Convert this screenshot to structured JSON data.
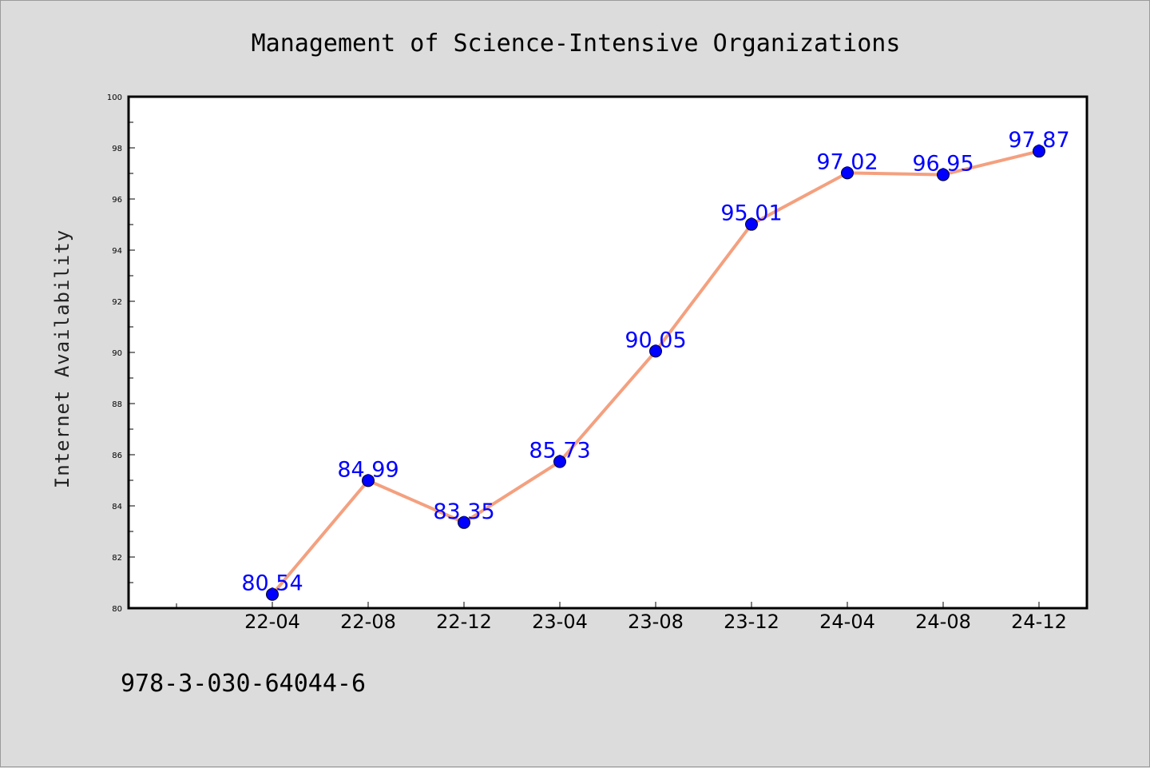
{
  "chart_data": {
    "type": "line",
    "title": "Management of Science-Intensive Organizations",
    "xlabel": "",
    "ylabel": "Internet Availability",
    "categories": [
      "22-04",
      "22-08",
      "22-12",
      "23-04",
      "23-08",
      "23-12",
      "24-04",
      "24-08",
      "24-12"
    ],
    "values": [
      80.54,
      84.99,
      83.35,
      85.73,
      90.05,
      95.01,
      97.02,
      96.95,
      97.87
    ],
    "value_labels": [
      "80.54",
      "84.99",
      "83.35",
      "85.73",
      "90.05",
      "95.01",
      "97.02",
      "96.95",
      "97.87"
    ],
    "ylim": [
      80,
      100
    ],
    "yticks": [
      "80",
      "82",
      "84",
      "86",
      "88",
      "90",
      "92",
      "94",
      "96",
      "98",
      "100"
    ],
    "grid": false,
    "line_color": "#f4a07f",
    "marker_color": "#0000ff",
    "label_color": "#0000ff"
  },
  "footer": {
    "text": "978-3-030-64044-6"
  }
}
